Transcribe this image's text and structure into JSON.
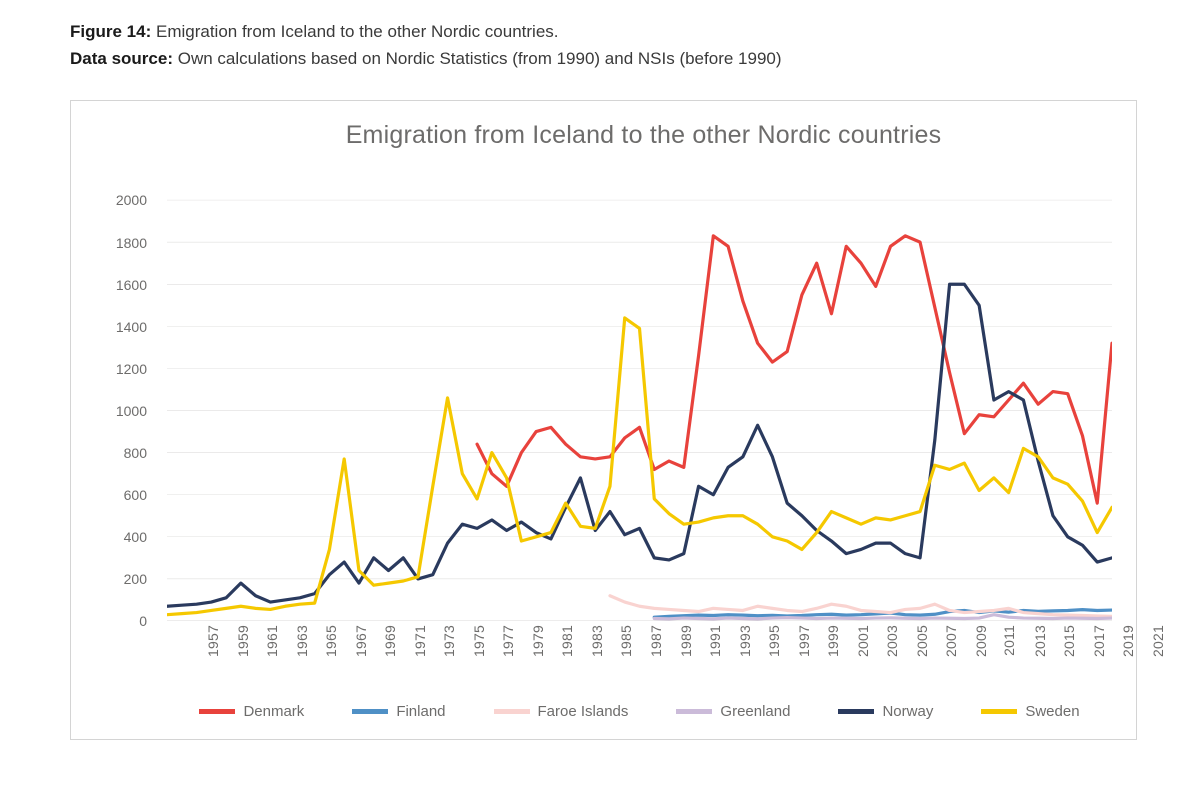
{
  "caption": {
    "figure_label": "Figure 14:",
    "figure_text": "Emigration from Iceland to the other Nordic countries.",
    "source_label": "Data source:",
    "source_text": "Own calculations based on Nordic Statistics (from 1990) and NSIs (before 1990)"
  },
  "chart": {
    "type": "line",
    "title": "Emigration from Iceland to the other Nordic countries",
    "title_fontsize": 25,
    "title_color": "#6d6c6b",
    "background_color": "#ffffff",
    "grid_color": "#d7d6d5",
    "axis_color": "#b8b5b2",
    "label_color": "#6d6c6b",
    "label_fontsize": 14,
    "line_width": 3.2,
    "x": {
      "start": 1957,
      "end": 2021,
      "tick_step": 2,
      "label_rotation": -90
    },
    "y": {
      "min": 0,
      "max": 2100,
      "tick_step": 200,
      "tick_max_label": 2000
    },
    "ylim": [
      0,
      2100
    ],
    "series": {
      "denmark": {
        "label": "Denmark",
        "color": "#e8423c",
        "start_year": 1978,
        "values": [
          840,
          700,
          640,
          800,
          900,
          920,
          840,
          780,
          770,
          780,
          870,
          920,
          720,
          760,
          730,
          1260,
          1830,
          1780,
          1520,
          1320,
          1230,
          1280,
          1550,
          1700,
          1460,
          1780,
          1700,
          1590,
          1780,
          1830,
          1800,
          1490,
          1180,
          890,
          980,
          970,
          1050,
          1130,
          1030,
          1090,
          1080,
          880,
          560,
          1320
        ]
      },
      "finland": {
        "label": "Finland",
        "color": "#4f90c6",
        "start_year": 1990,
        "values": [
          18,
          22,
          25,
          28,
          26,
          30,
          28,
          25,
          27,
          24,
          26,
          30,
          32,
          28,
          30,
          34,
          38,
          30,
          28,
          32,
          45,
          50,
          40,
          48,
          42,
          50,
          46,
          48,
          50,
          54,
          50,
          52
        ]
      },
      "faroe": {
        "label": "Faroe Islands",
        "color": "#f9d3d0",
        "start_year": 1987,
        "values": [
          120,
          90,
          70,
          60,
          55,
          50,
          45,
          60,
          55,
          50,
          70,
          60,
          50,
          45,
          60,
          80,
          70,
          50,
          45,
          40,
          55,
          60,
          80,
          50,
          40,
          45,
          50,
          60,
          40,
          35,
          30,
          28,
          26,
          24,
          22
        ]
      },
      "greenland": {
        "label": "Greenland",
        "color": "#cbbbd9",
        "start_year": 1990,
        "values": [
          12,
          10,
          14,
          12,
          10,
          14,
          12,
          10,
          14,
          16,
          14,
          12,
          14,
          13,
          12,
          14,
          15,
          13,
          12,
          14,
          13,
          12,
          14,
          30,
          18,
          14,
          13,
          12,
          14,
          13,
          12,
          14
        ]
      },
      "norway": {
        "label": "Norway",
        "color": "#2a3a5e",
        "start_year": 1957,
        "values": [
          70,
          75,
          80,
          90,
          110,
          180,
          120,
          90,
          100,
          110,
          130,
          220,
          280,
          180,
          300,
          240,
          300,
          200,
          220,
          370,
          460,
          440,
          480,
          430,
          470,
          420,
          390,
          540,
          680,
          430,
          520,
          410,
          440,
          300,
          290,
          320,
          640,
          600,
          730,
          780,
          930,
          780,
          560,
          500,
          430,
          380,
          320,
          340,
          370,
          370,
          320,
          300,
          860,
          1600,
          1600,
          1500,
          1050,
          1090,
          1050,
          760,
          500,
          400,
          360,
          280,
          300
        ]
      },
      "sweden": {
        "label": "Sweden",
        "color": "#f5c800",
        "start_year": 1957,
        "values": [
          30,
          35,
          40,
          50,
          60,
          70,
          60,
          55,
          70,
          80,
          85,
          340,
          770,
          240,
          170,
          180,
          190,
          210,
          640,
          1060,
          700,
          580,
          800,
          680,
          380,
          400,
          420,
          560,
          450,
          440,
          640,
          1440,
          1390,
          580,
          510,
          460,
          470,
          490,
          500,
          500,
          460,
          400,
          380,
          340,
          420,
          520,
          490,
          460,
          490,
          480,
          500,
          520,
          740,
          720,
          750,
          620,
          680,
          610,
          820,
          780,
          680,
          650,
          570,
          420,
          540
        ]
      }
    },
    "legend_order": [
      "denmark",
      "finland",
      "faroe",
      "greenland",
      "norway",
      "sweden"
    ]
  }
}
